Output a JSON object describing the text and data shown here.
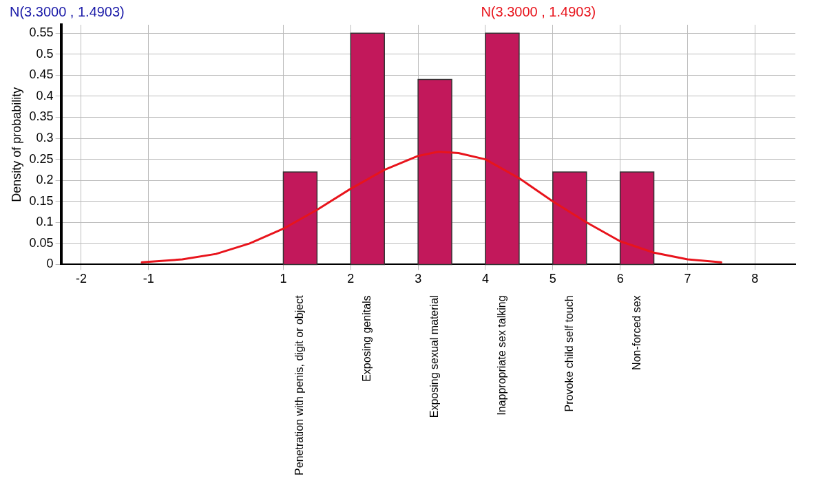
{
  "chart_data": {
    "type": "histogram",
    "title": "N(3.3000 , 1.4903)",
    "ylabel": "Density of probability",
    "bins": [
      1,
      1.5,
      2,
      2.5,
      3,
      3.5,
      4,
      4.5,
      5,
      5.5,
      6,
      6.5
    ],
    "values": [
      0.22,
      0,
      0.55,
      0,
      0.44,
      0,
      0.55,
      0,
      0.22,
      0,
      0.22
    ],
    "color": "#c2185b",
    "series": [
      {
        "name": "N(3.3000 , 1.4903)",
        "type": "line",
        "color": "#e8141c",
        "x": [
          -1.1,
          -0.5,
          0,
          0.5,
          1,
          1.5,
          2,
          2.5,
          3,
          3.3,
          3.6,
          4,
          4.5,
          5,
          5.5,
          6,
          6.5,
          7,
          7.5
        ],
        "values": [
          0.005,
          0.012,
          0.025,
          0.05,
          0.085,
          0.13,
          0.18,
          0.225,
          0.258,
          0.268,
          0.265,
          0.25,
          0.205,
          0.15,
          0.1,
          0.055,
          0.028,
          0.012,
          0.005
        ]
      }
    ],
    "annotations": [
      {
        "text": "Penetration with penis, digit or object",
        "x": 1.25,
        "y": 0
      },
      {
        "text": "Exposing genitals",
        "x": 2.25,
        "y": 0
      },
      {
        "text": "Exposing sexual material",
        "x": 3.25,
        "y": 0
      },
      {
        "text": "Inappropriate sex talking",
        "x": 4.25,
        "y": 0
      },
      {
        "text": "Provoke child self touch",
        "x": 5.25,
        "y": 0
      },
      {
        "text": "Non-forced sex",
        "x": 6.25,
        "y": 0
      }
    ],
    "xlim": [
      -2.3,
      8.6
    ],
    "xticks": [
      -2,
      -1,
      1,
      2,
      3,
      4,
      5,
      6,
      7,
      8
    ],
    "ylim": [
      0,
      0.57
    ],
    "yticks": [
      0,
      0.05,
      0.1,
      0.15,
      0.2,
      0.25,
      0.3,
      0.35,
      0.4,
      0.45,
      0.5,
      0.55
    ],
    "grid": true,
    "legend": false
  }
}
